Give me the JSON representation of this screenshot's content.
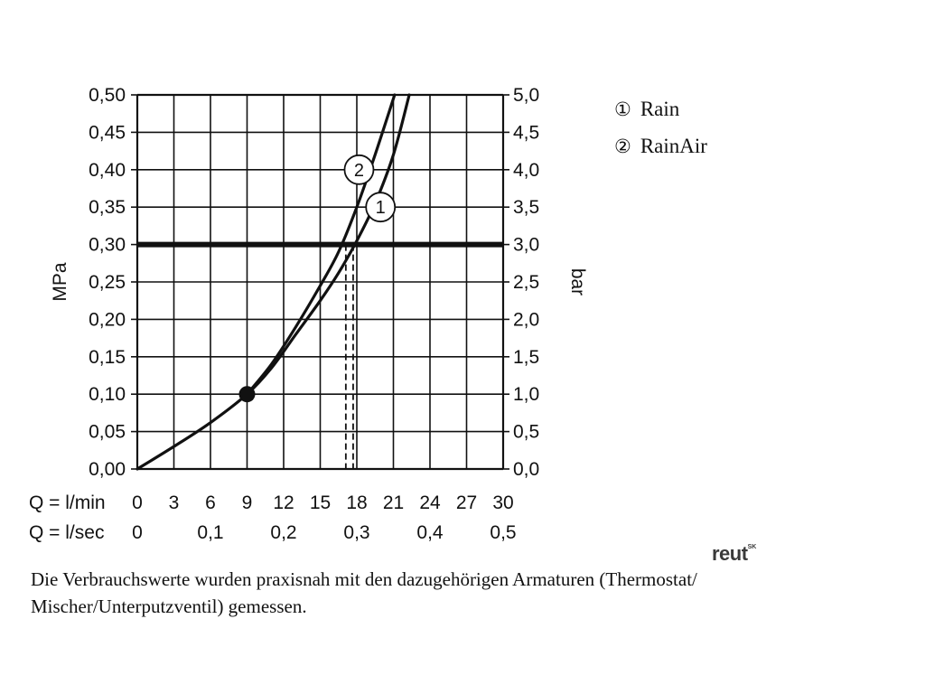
{
  "chart_data": {
    "type": "line",
    "left_axis": {
      "label": "MPa",
      "ticks": [
        "0,00",
        "0,05",
        "0,10",
        "0,15",
        "0,20",
        "0,25",
        "0,30",
        "0,35",
        "0,40",
        "0,45",
        "0,50"
      ],
      "range": [
        0,
        0.5
      ]
    },
    "right_axis": {
      "label": "bar",
      "ticks": [
        "0,0",
        "0,5",
        "1,0",
        "1,5",
        "2,0",
        "2,5",
        "3,0",
        "3,5",
        "4,0",
        "4,5",
        "5,0"
      ],
      "range": [
        0,
        5
      ]
    },
    "x_axis_lmin": {
      "label": "Q = l/min",
      "ticks": [
        "0",
        "3",
        "6",
        "9",
        "12",
        "15",
        "18",
        "21",
        "24",
        "27",
        "30"
      ],
      "range": [
        0,
        30
      ]
    },
    "x_axis_lsec": {
      "label": "Q = l/sec",
      "ticks": [
        "0",
        "0,1",
        "0,2",
        "0,3",
        "0,4",
        "0,5"
      ]
    },
    "grid": true,
    "series": [
      {
        "name": "Rain",
        "marker": "1",
        "x": [
          0,
          3,
          6,
          9,
          11,
          13,
          15,
          16.5,
          18,
          19.5,
          21,
          22.3
        ],
        "y": [
          0,
          0.03,
          0.062,
          0.1,
          0.135,
          0.18,
          0.225,
          0.262,
          0.305,
          0.355,
          0.42,
          0.5
        ]
      },
      {
        "name": "RainAir",
        "marker": "2",
        "x": [
          9,
          11,
          13,
          15,
          16.5,
          18,
          19.5,
          21.1
        ],
        "y": [
          0.1,
          0.14,
          0.19,
          0.245,
          0.29,
          0.35,
          0.42,
          0.5
        ]
      }
    ],
    "reference_line": {
      "y": 0.3
    },
    "operating_point": {
      "x": 9,
      "y": 0.1
    },
    "flow_markers_at_3bar": [
      17.1,
      17.7
    ]
  },
  "legend": [
    {
      "num": "①",
      "label": "Rain"
    },
    {
      "num": "②",
      "label": "RainAir"
    }
  ],
  "note": "Die Verbrauchswerte wurden praxisnah mit den dazugehörigen Armaturen (Thermostat/ Mischer/Unterputzventil) gemessen.",
  "logo": {
    "text": "reut",
    "suffix": "SK"
  }
}
